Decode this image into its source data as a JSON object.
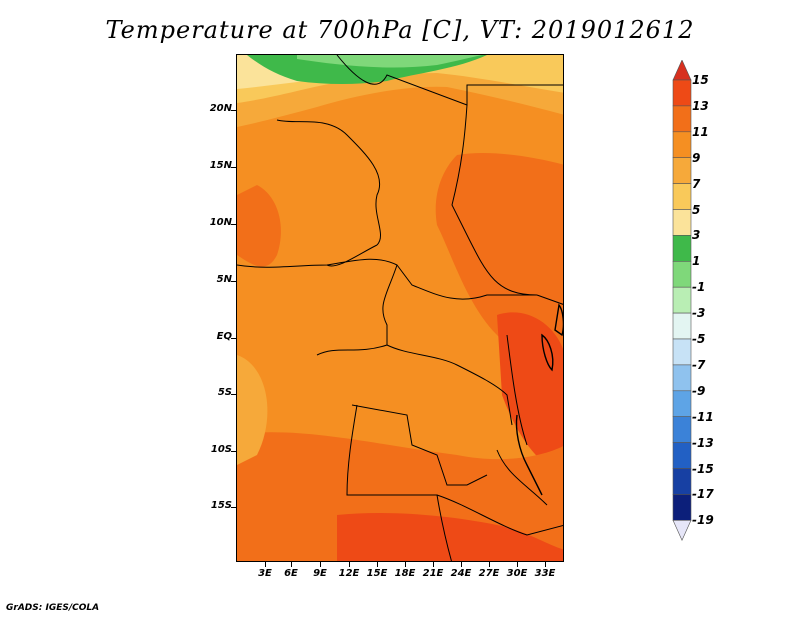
{
  "title": "Temperature at 700hPa [C], VT: 2019012612",
  "credit": "GrADS: IGES/COLA",
  "y_ticks": [
    "20N",
    "15N",
    "10N",
    "5N",
    "EQ",
    "5S",
    "10S",
    "15S"
  ],
  "x_ticks": [
    "3E",
    "6E",
    "9E",
    "12E",
    "15E",
    "18E",
    "21E",
    "24E",
    "27E",
    "30E",
    "33E"
  ],
  "colorbar": {
    "labels": [
      "15",
      "13",
      "11",
      "9",
      "7",
      "5",
      "3",
      "1",
      "-1",
      "-3",
      "-5",
      "-7",
      "-9",
      "-11",
      "-13",
      "-15",
      "-17",
      "-19"
    ],
    "colors": [
      "#d7301f",
      "#ee4a16",
      "#f26f19",
      "#f58f22",
      "#f6a93a",
      "#f9c95a",
      "#fbe39a",
      "#3fb94a",
      "#7fd87a",
      "#b9eeb4",
      "#e3f5f2",
      "#c7e2f6",
      "#8fc2ee",
      "#5ea4e6",
      "#3b82d8",
      "#2260c4",
      "#1740a3",
      "#0c1f7a",
      "#080c4a"
    ]
  },
  "palette": {
    "warm_dark": "#ee4a16",
    "warm": "#f26f19",
    "orange": "#f58f22",
    "light_orange": "#f6a93a",
    "yellow": "#f9c95a",
    "pale": "#fbe39a",
    "green": "#3fb94a",
    "light_green": "#7fd87a"
  }
}
